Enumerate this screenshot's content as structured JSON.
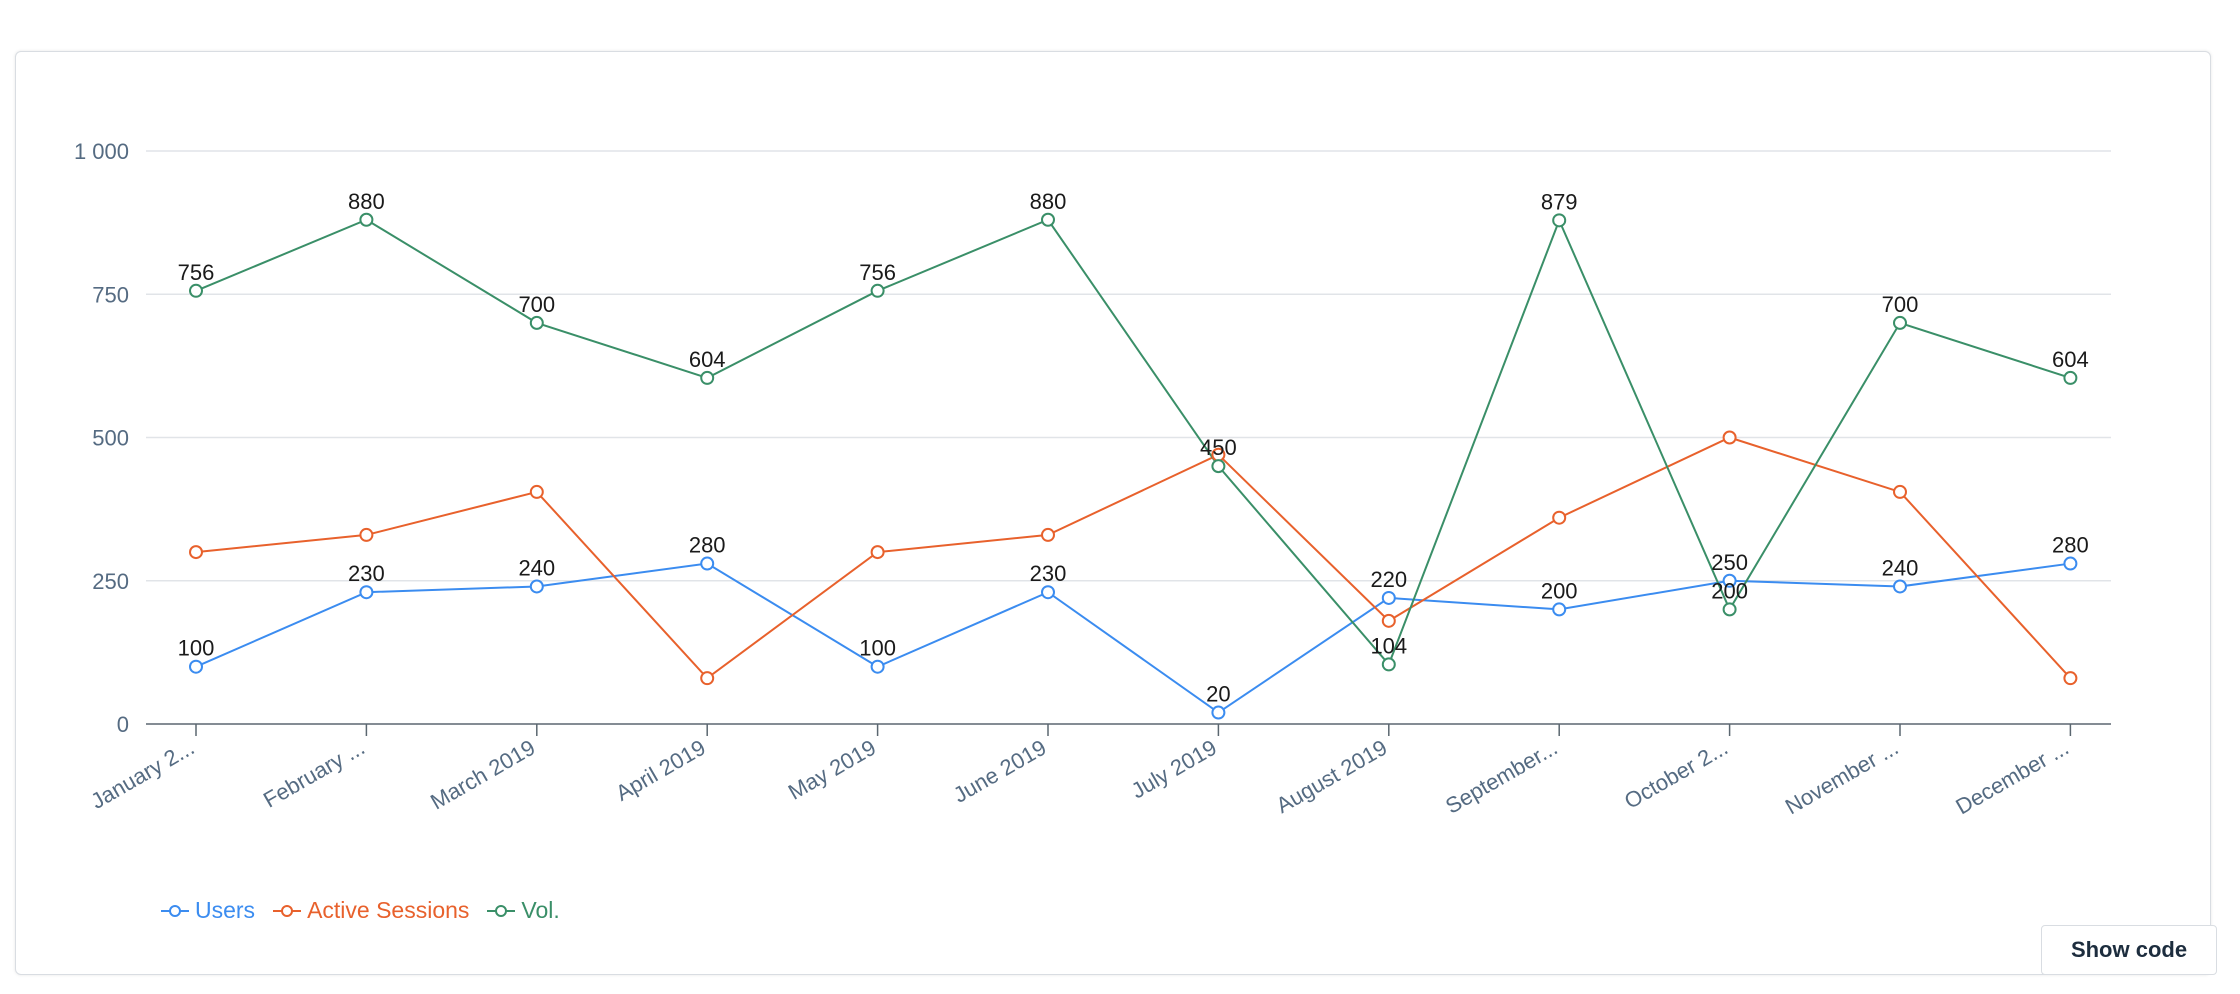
{
  "chart_data": {
    "type": "line",
    "categories": [
      "January 2...",
      "February ...",
      "March 2019",
      "April 2019",
      "May 2019",
      "June 2019",
      "July 2019",
      "August 2019",
      "September...",
      "October 2...",
      "November ...",
      "December ..."
    ],
    "series": [
      {
        "name": "Users",
        "color": "#3b8cf0",
        "values": [
          100,
          230,
          240,
          280,
          100,
          230,
          20,
          220,
          200,
          250,
          240,
          280
        ],
        "data_labels": [
          "100",
          "230",
          "240",
          "280",
          "100",
          "230",
          "20",
          "220",
          "200",
          "250",
          "240",
          "280"
        ]
      },
      {
        "name": "Active Sessions",
        "color": "#e8612c",
        "values": [
          300,
          330,
          405,
          80,
          300,
          330,
          470,
          180,
          360,
          500,
          405,
          80
        ],
        "data_labels": []
      },
      {
        "name": "Vol.",
        "color": "#3a8f68",
        "values": [
          756,
          880,
          700,
          604,
          756,
          880,
          450,
          104,
          879,
          200,
          700,
          604
        ],
        "data_labels": [
          "756",
          "880",
          "700",
          "604",
          "756",
          "880",
          "450",
          "104",
          "879",
          "200",
          "700",
          "604"
        ]
      }
    ],
    "y_ticks": [
      "0",
      "250",
      "500",
      "750",
      "1 000"
    ],
    "ylim": [
      0,
      1000
    ],
    "grid": "horizontal",
    "legend_position": "bottom-left",
    "title": "",
    "xlabel": "",
    "ylabel": ""
  },
  "footer": {
    "show_code_label": "Show code"
  }
}
